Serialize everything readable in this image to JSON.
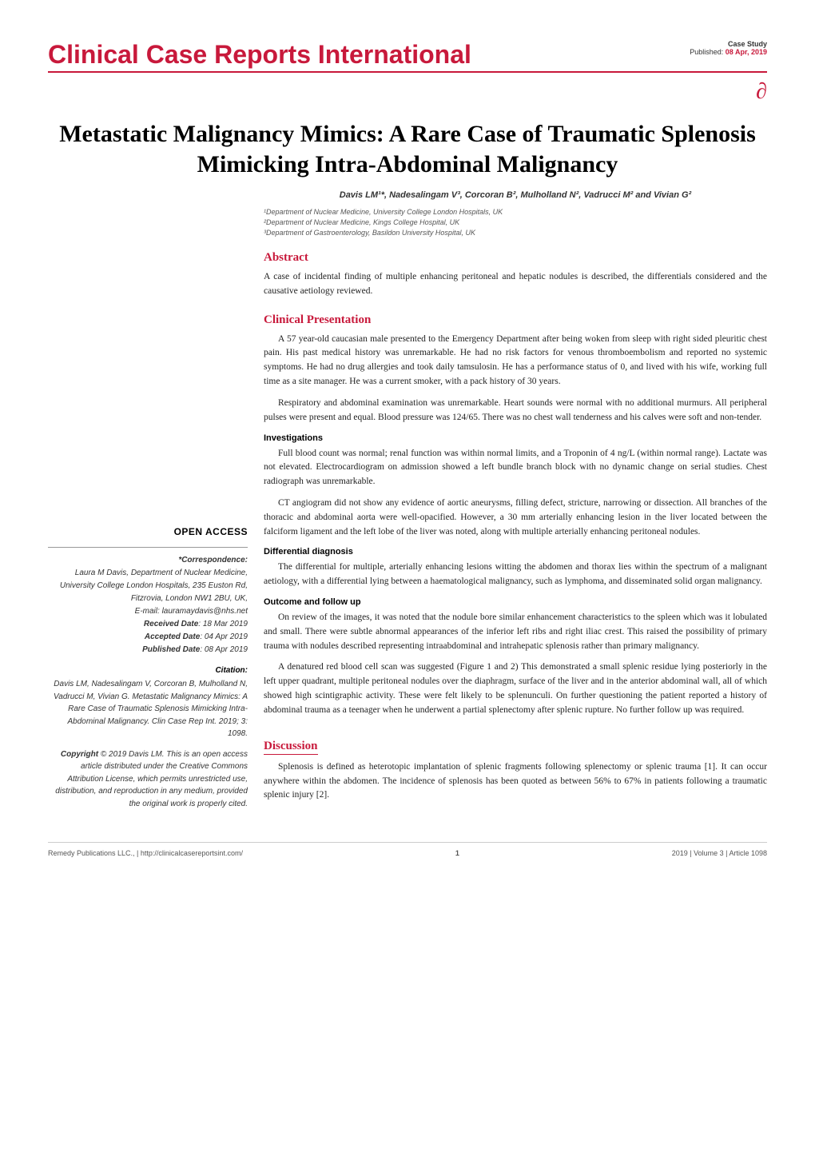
{
  "colors": {
    "accent": "#c8193b",
    "text": "#000000",
    "body_text": "#222222",
    "meta_text": "#333333",
    "affil_text": "#555555",
    "rule_grey": "#999999",
    "footer_rule": "#cccccc",
    "background": "#ffffff"
  },
  "typography": {
    "journal_name_pt": 32,
    "article_title_pt": 30,
    "section_h_pt": 15,
    "body_pt": 11.5,
    "meta_pt": 10,
    "footer_pt": 9
  },
  "header": {
    "journal_name": "Clinical Case Reports International",
    "study_type": "Case Study",
    "published_label": "Published: ",
    "published_date": "08 Apr, 2019",
    "oa_icon_glyph": "∂"
  },
  "article": {
    "title": "Metastatic Malignancy Mimics: A Rare Case of Traumatic Splenosis Mimicking Intra-Abdominal Malignancy",
    "authors_html": "Davis LM¹*, Nadesalingam V³, Corcoran B², Mulholland N², Vadrucci M² and Vivian G²",
    "affiliations": [
      "¹Department of Nuclear Medicine, University College London Hospitals, UK",
      "²Department of Nuclear Medicine, Kings College Hospital, UK",
      "³Department of Gastroenterology, Basildon University Hospital, UK"
    ]
  },
  "sections": {
    "abstract": {
      "heading": "Abstract",
      "text": "A case of incidental finding of multiple enhancing peritoneal and hepatic nodules is described, the differentials considered and the causative aetiology reviewed."
    },
    "clinical": {
      "heading": "Clinical Presentation",
      "paras": [
        "A 57 year-old caucasian male presented to the Emergency Department after being woken from sleep with right sided pleuritic chest pain. His past medical history was unremarkable. He had no risk factors for venous thromboembolism and reported no systemic symptoms. He had no drug allergies and took daily tamsulosin. He has a performance status of 0, and lived with his wife, working full time as a site manager. He was a current smoker, with a pack history of 30 years.",
        "Respiratory and abdominal examination was unremarkable. Heart sounds were normal with no additional murmurs. All peripheral pulses were present and equal. Blood pressure was 124/65. There was no chest wall tenderness and his calves were soft and non-tender."
      ]
    },
    "investigations": {
      "heading": "Investigations",
      "paras": [
        "Full blood count was normal; renal function was within normal limits, and a Troponin of 4 ng/L (within normal range). Lactate was not elevated. Electrocardiogram on admission showed a left bundle branch block with no dynamic change on serial studies. Chest radiograph was unremarkable.",
        "CT angiogram did not show any evidence of aortic aneurysms, filling defect, stricture, narrowing or dissection. All branches of the thoracic and abdominal aorta were well-opacified. However, a 30 mm arterially enhancing lesion in the liver located between the falciform ligament and the left lobe of the liver was noted, along with multiple arterially enhancing peritoneal nodules."
      ]
    },
    "differential": {
      "heading": "Differential diagnosis",
      "paras": [
        "The differential for multiple, arterially enhancing lesions witting the abdomen and thorax lies within the spectrum of a malignant aetiology, with a differential lying between a haematological malignancy, such as lymphoma, and disseminated solid organ malignancy."
      ]
    },
    "outcome": {
      "heading": "Outcome and follow up",
      "paras": [
        "On review of the images, it was noted that the nodule bore similar enhancement characteristics to the spleen which was it lobulated and small. There were subtle abnormal appearances of the inferior left ribs and right iliac crest. This raised the possibility of primary trauma with nodules described representing intraabdominal and intrahepatic splenosis rather than primary malignancy.",
        "A denatured red blood cell scan was suggested (Figure 1 and 2) This demonstrated a small splenic residue lying posteriorly in the left upper quadrant, multiple peritoneal nodules over the diaphragm, surface of the liver and in the anterior abdominal wall, all of which showed high scintigraphic activity. These were felt likely to be splenunculi. On further questioning the patient reported a history of abdominal trauma as a teenager when he underwent a partial splenectomy after splenic rupture. No further follow up was required."
      ]
    },
    "discussion": {
      "heading": "Discussion",
      "paras": [
        "Splenosis is defined as heterotopic implantation of splenic fragments following splenectomy or splenic trauma [1]. It can occur anywhere within the abdomen. The incidence of splenosis has been quoted as between 56% to 67% in patients following a traumatic splenic injury [2]."
      ]
    }
  },
  "open_access": {
    "title": "OPEN ACCESS",
    "correspondence_label": "*Correspondence:",
    "correspondence_text": "Laura M Davis, Department of Nuclear Medicine, University College London Hospitals, 235 Euston Rd, Fitzrovia, London NW1 2BU, UK,",
    "email_label": "E-mail: ",
    "email": "lauramaydavis@nhs.net",
    "received_label": "Received Date",
    "received_date": "18 Mar 2019",
    "accepted_label": "Accepted Date",
    "accepted_date": "04 Apr 2019",
    "published_label": "Published Date",
    "published_date": "08 Apr 2019",
    "citation_label": "Citation:",
    "citation_text": "Davis LM, Nadesalingam V, Corcoran B, Mulholland N, Vadrucci M, Vivian G. Metastatic Malignancy Mimics: A Rare Case of Traumatic Splenosis Mimicking Intra-Abdominal Malignancy. Clin Case Rep Int. 2019; 3: 1098.",
    "copyright_bold": "Copyright",
    "copyright_text": " © 2019 Davis LM. This is an open access article distributed under the Creative Commons Attribution License, which permits unrestricted use, distribution, and reproduction in any medium, provided the original work is properly cited."
  },
  "footer": {
    "left": "Remedy Publications LLC., | http://clinicalcasereportsint.com/",
    "page_num": "1",
    "right": "2019 | Volume 3 | Article 1098"
  }
}
